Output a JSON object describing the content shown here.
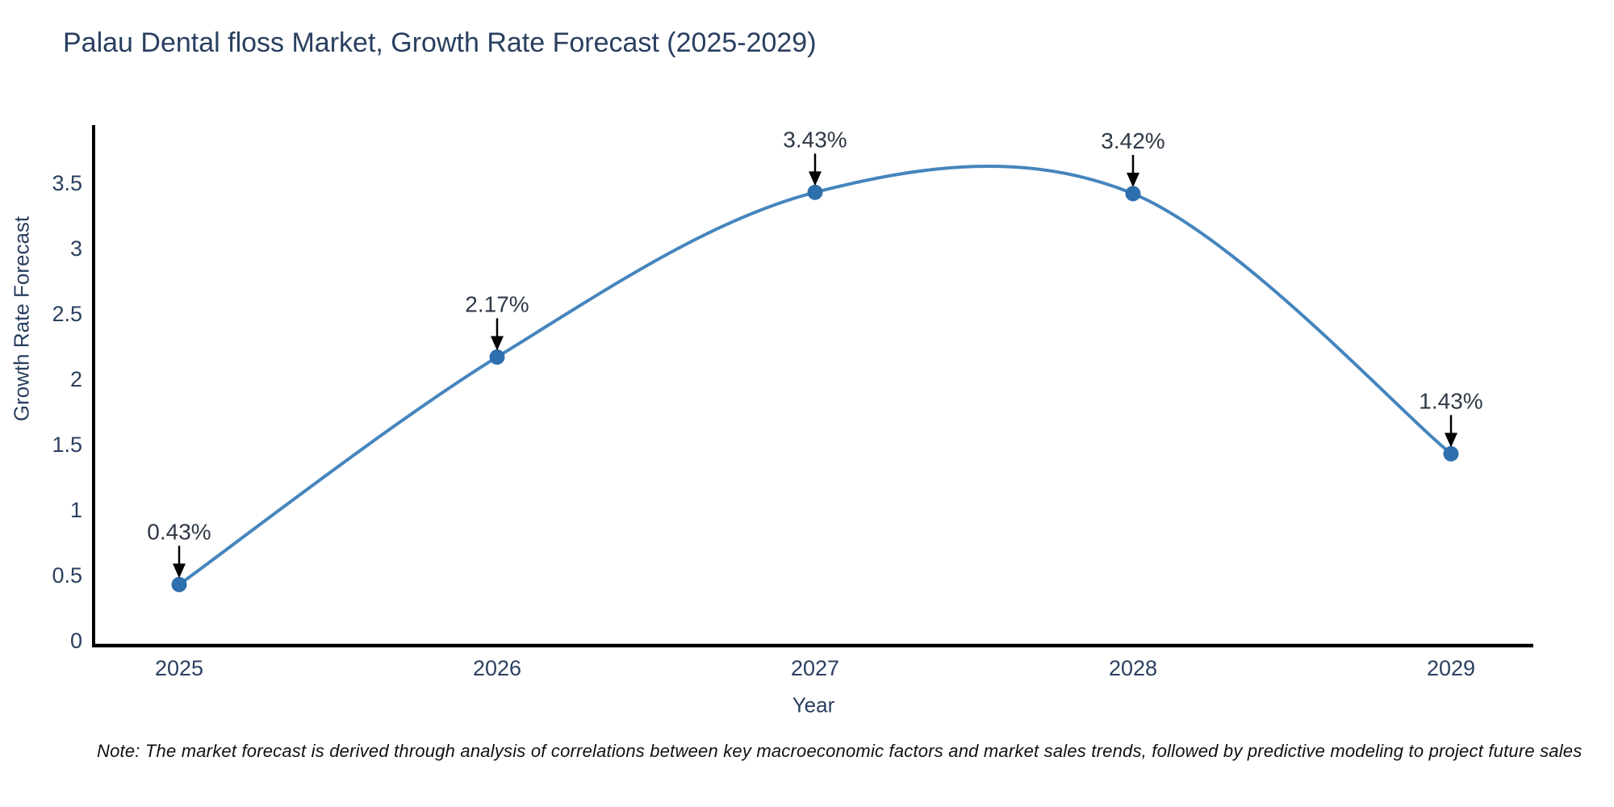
{
  "note": "Note: The market forecast is derived through analysis of correlations between key macroeconomic factors and market sales trends, followed by predictive modeling to project future sales",
  "chart_data": {
    "type": "line",
    "line_shape": "spline",
    "title": "Palau Dental floss Market, Growth Rate Forecast (2025-2029)",
    "xlabel": "Year",
    "ylabel": "Growth Rate Forecast",
    "categories": [
      "2025",
      "2026",
      "2027",
      "2028",
      "2029"
    ],
    "values": [
      0.43,
      2.17,
      3.43,
      3.42,
      1.43
    ],
    "point_labels": [
      "0.43%",
      "2.17%",
      "3.43%",
      "3.42%",
      "1.43%"
    ],
    "yticks": [
      "0",
      "0.5",
      "1",
      "1.5",
      "2",
      "2.5",
      "3",
      "3.5"
    ],
    "ylim": [
      0,
      3.95
    ],
    "grid": false,
    "legend_position": "none",
    "annotations_style": "value label with down arrow to each point",
    "colors": {
      "line": "#4585bd",
      "marker": "#2e6fad",
      "axis": "#000000",
      "text": "#2a3f5f",
      "annotation_arrow": "#000000",
      "note_text": "#111111",
      "background": "#ffffff"
    }
  }
}
